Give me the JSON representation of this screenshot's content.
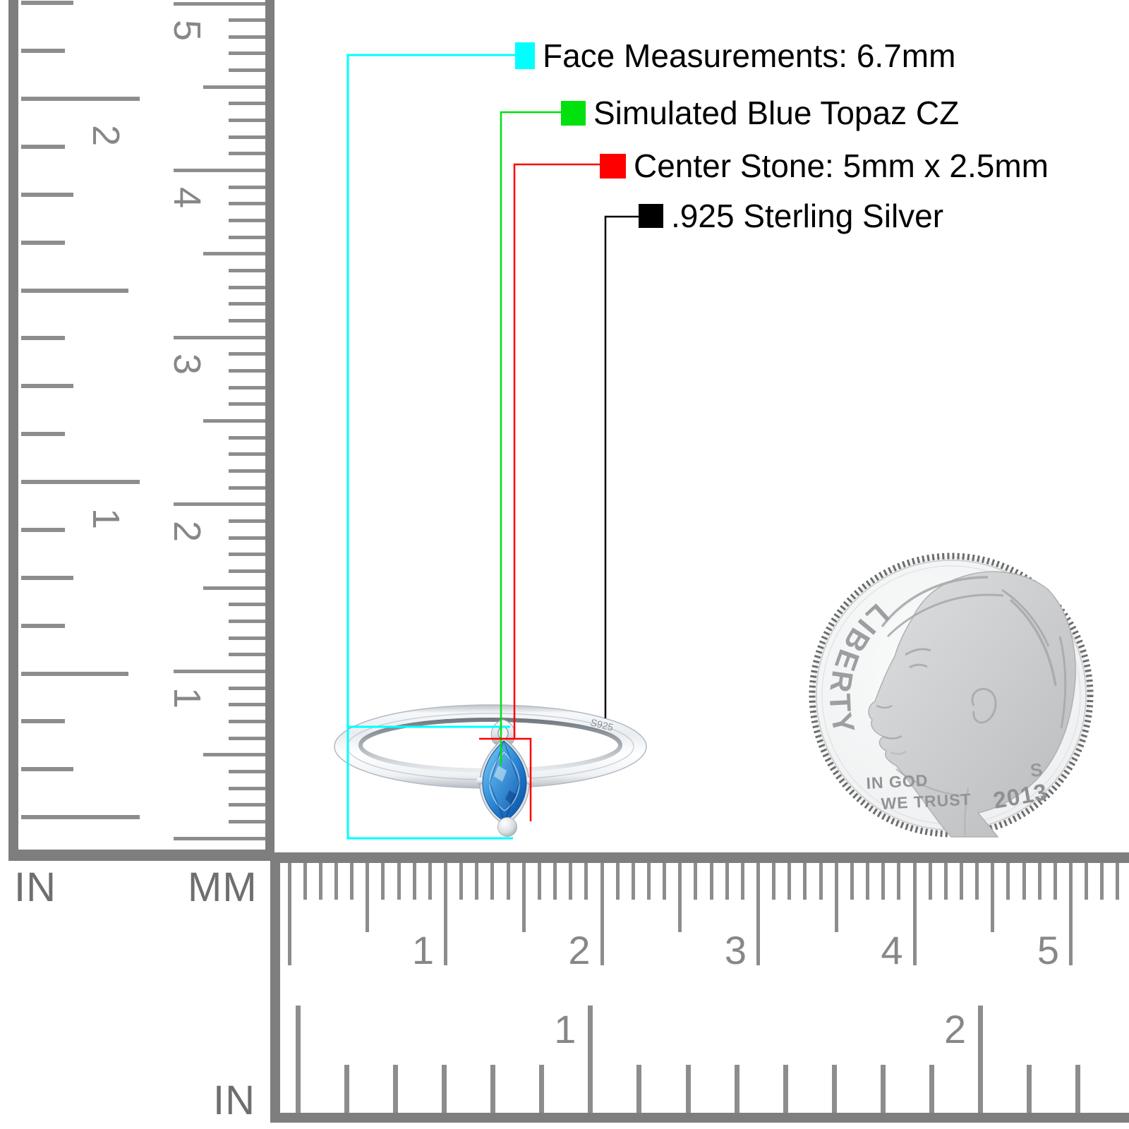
{
  "legend": {
    "items": [
      {
        "id": "face",
        "label": "Face Measurements: 6.7mm",
        "color": "#00ffff"
      },
      {
        "id": "stone",
        "label": "Simulated Blue Topaz CZ",
        "color": "#00e10e"
      },
      {
        "id": "center-stone",
        "label": "Center Stone: 5mm x 2.5mm",
        "color": "#ff0000"
      },
      {
        "id": "metal",
        "label": ".925 Sterling Silver",
        "color": "#000000"
      }
    ]
  },
  "ring": {
    "engraving": "S925"
  },
  "coin": {
    "liberty": "LIBERTY",
    "motto_line1": "IN GOD",
    "motto_line2": "WE TRUST",
    "mint_mark": "S",
    "year": "2013"
  },
  "rulers": {
    "left": {
      "unit_inch_label": "IN",
      "unit_mm_label": "MM",
      "cm_numbers": [
        "1",
        "2",
        "3",
        "4",
        "5"
      ],
      "inch_numbers": [
        "1",
        "2"
      ]
    },
    "bottom": {
      "unit_inch_label": "IN",
      "cm_numbers": [
        "1",
        "2",
        "3",
        "4",
        "5"
      ],
      "inch_numbers": [
        "1",
        "2"
      ]
    }
  },
  "colors": {
    "ruler_tick": "#8d8d8d",
    "ruler_bar": "#7e7e7e",
    "ruler_number": "#878787",
    "unit_label": "#6f6f6f",
    "stone_blue": "#1c72c4",
    "silver": "#cfd5db"
  }
}
